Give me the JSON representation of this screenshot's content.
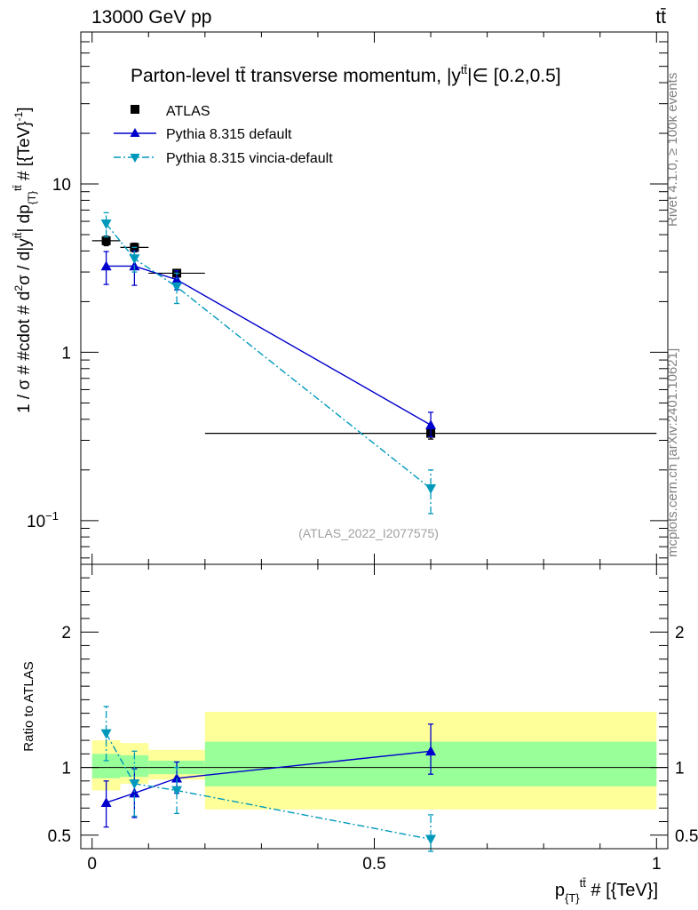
{
  "header": {
    "energy_label": "13000 GeV pp",
    "process_label": "tt̄"
  },
  "side": {
    "rivet_label": "Rivet 4.1.0, ≥ 100k events",
    "source_label": "mcplots.cern.ch [arXiv:2401.10621]"
  },
  "chart_data": [
    {
      "type": "line",
      "panel": "main",
      "title": "Parton-level tt̄ transverse momentum, |y",
      "title_sup": "tt̄",
      "title_tail": "|∈ [0.2,0.5]",
      "ylabel": "1 / σ # #cdot # d²σ / d|y^{tt̄}| dp_{T}^{tt̄} # [{TeV}⁻¹]",
      "ylabel_parts": {
        "a": "1 / σ # #cdot # d",
        "b": "2",
        "c": "σ / d|y",
        "d": "tt̄",
        "e": "| dp",
        "f": "{T}",
        "g": "tt̄",
        "h": " # [{TeV}",
        "i": "-1",
        "j": "]"
      },
      "yscale": "log",
      "ylim": [
        0.055,
        80
      ],
      "xlim": [
        -0.02,
        1.02
      ],
      "yticks": [
        {
          "v": 10,
          "label": "10"
        },
        {
          "v": 1,
          "label": "1"
        },
        {
          "v": 0.1,
          "label": "10",
          "sup": "−1"
        }
      ],
      "watermark": "(ATLAS_2022_I2077575)",
      "legend_position": "top-left",
      "series": [
        {
          "name": "ATLAS",
          "style": "data",
          "color": "#000000",
          "x": [
            0.025,
            0.075,
            0.15,
            0.6
          ],
          "xerr": [
            0.025,
            0.025,
            0.05,
            0.4
          ],
          "y": [
            4.6,
            4.2,
            2.95,
            0.33
          ],
          "yerr_lo": [
            0.3,
            0.25,
            0.15,
            0.025
          ],
          "yerr_hi": [
            0.3,
            0.25,
            0.15,
            0.025
          ]
        },
        {
          "name": "Pythia 8.315 default",
          "style": "solid",
          "color": "#0000cc",
          "marker": "triangle-up",
          "x": [
            0.025,
            0.075,
            0.15,
            0.6
          ],
          "y": [
            3.25,
            3.25,
            2.7,
            0.37
          ],
          "yerr_lo": [
            0.72,
            0.75,
            0.35,
            0.055
          ],
          "yerr_hi": [
            0.72,
            0.75,
            0.35,
            0.07
          ]
        },
        {
          "name": "Pythia 8.315 vincia-default",
          "style": "dashdot",
          "color": "#0099bb",
          "marker": "triangle-down",
          "x": [
            0.025,
            0.075,
            0.15,
            0.6
          ],
          "y": [
            5.8,
            3.6,
            2.45,
            0.155
          ],
          "yerr_lo": [
            0.95,
            0.6,
            0.5,
            0.045
          ],
          "yerr_hi": [
            0.95,
            0.6,
            0.5,
            0.045
          ]
        }
      ]
    },
    {
      "type": "line",
      "panel": "ratio",
      "ylabel": "Ratio to ATLAS",
      "xlabel": "p_{T}^{tt̄} # [{TeV}]",
      "xlabel_parts": {
        "a": "p",
        "b": "{T}",
        "c": "tt̄",
        "d": " # [{TeV}]"
      },
      "ylim": [
        0.4,
        2.5
      ],
      "xlim": [
        -0.02,
        1.02
      ],
      "yticks": [
        {
          "v": 0.5,
          "label": "0.5"
        },
        {
          "v": 1,
          "label": "1"
        },
        {
          "v": 2,
          "label": "2"
        }
      ],
      "xticks": [
        {
          "v": 0,
          "label": "0"
        },
        {
          "v": 0.5,
          "label": "0.5"
        },
        {
          "v": 1,
          "label": "1"
        }
      ],
      "bands": [
        {
          "xlo": 0.0,
          "xhi": 0.05,
          "outer": [
            0.83,
            1.2
          ],
          "inner": [
            0.92,
            1.1
          ]
        },
        {
          "xlo": 0.05,
          "xhi": 0.1,
          "outer": [
            0.88,
            1.18
          ],
          "inner": [
            0.93,
            1.09
          ]
        },
        {
          "xlo": 0.1,
          "xhi": 0.2,
          "outer": [
            0.91,
            1.13
          ],
          "inner": [
            0.95,
            1.05
          ]
        },
        {
          "xlo": 0.2,
          "xhi": 1.0,
          "outer": [
            0.69,
            1.41
          ],
          "inner": [
            0.86,
            1.19
          ]
        }
      ],
      "band_colors": {
        "outer": "#ffff99",
        "inner": "#99ff99"
      },
      "series": [
        {
          "name": "Pythia 8.315 default",
          "style": "solid",
          "color": "#0000cc",
          "marker": "triangle-up",
          "x": [
            0.025,
            0.075,
            0.15,
            0.6
          ],
          "y": [
            0.74,
            0.81,
            0.92,
            1.12
          ],
          "yerr_lo": [
            0.18,
            0.18,
            0.11,
            0.17
          ],
          "yerr_hi": [
            0.16,
            0.18,
            0.12,
            0.2
          ]
        },
        {
          "name": "Pythia 8.315 vincia-default",
          "style": "dashdot",
          "color": "#0099bb",
          "marker": "triangle-down",
          "x": [
            0.025,
            0.075,
            0.15,
            0.6
          ],
          "y": [
            1.25,
            0.88,
            0.83,
            0.47
          ],
          "yerr_lo": [
            0.2,
            0.24,
            0.17,
            0.09
          ],
          "yerr_hi": [
            0.2,
            0.24,
            0.17,
            0.18
          ]
        }
      ]
    }
  ]
}
